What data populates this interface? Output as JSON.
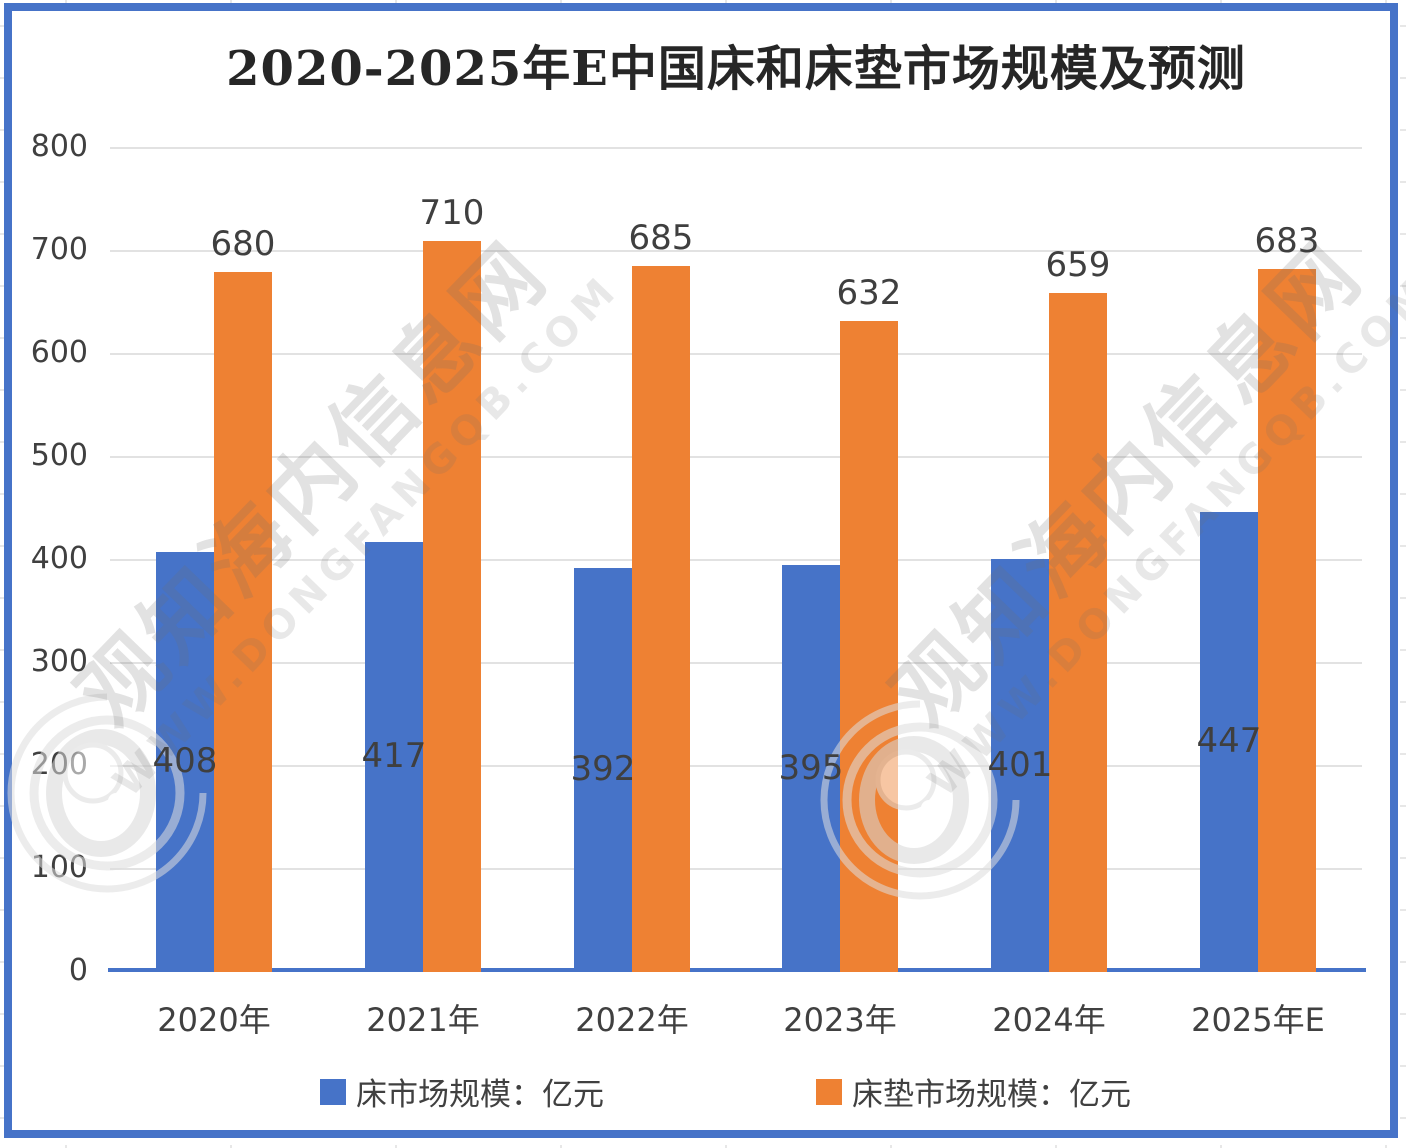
{
  "title": "2020-2025年E中国床和床垫市场规模及预测",
  "watermark": {
    "site_name": "观知海内信息网",
    "url": "WWW.DONGFANGQB.COM"
  },
  "colors": {
    "bed_series": "#4673C8",
    "mattress_series": "#EE8133",
    "frame_border": "#4673C8",
    "axis_line": "#4673C8",
    "gridline": "#e2e2e2",
    "text": "#404040"
  },
  "chart_data": {
    "type": "bar",
    "title": "2020-2025年E中国床和床垫市场规模及预测",
    "categories": [
      "2020年",
      "2021年",
      "2022年",
      "2023年",
      "2024年",
      "2025年E"
    ],
    "series": [
      {
        "name": "床市场规模：亿元",
        "key": "bed",
        "color": "#4673C8",
        "values": [
          408,
          417,
          392,
          395,
          401,
          447
        ],
        "label_position": "inside-center"
      },
      {
        "name": "床垫市场规模：亿元",
        "key": "mattress",
        "color": "#EE8133",
        "values": [
          680,
          710,
          685,
          632,
          659,
          683
        ],
        "label_position": "above"
      }
    ],
    "xlabel": "",
    "ylabel": "",
    "ylim": [
      0,
      800
    ],
    "yticks": [
      0,
      100,
      200,
      300,
      400,
      500,
      600,
      700,
      800
    ],
    "grid": true,
    "legend_position": "bottom"
  }
}
